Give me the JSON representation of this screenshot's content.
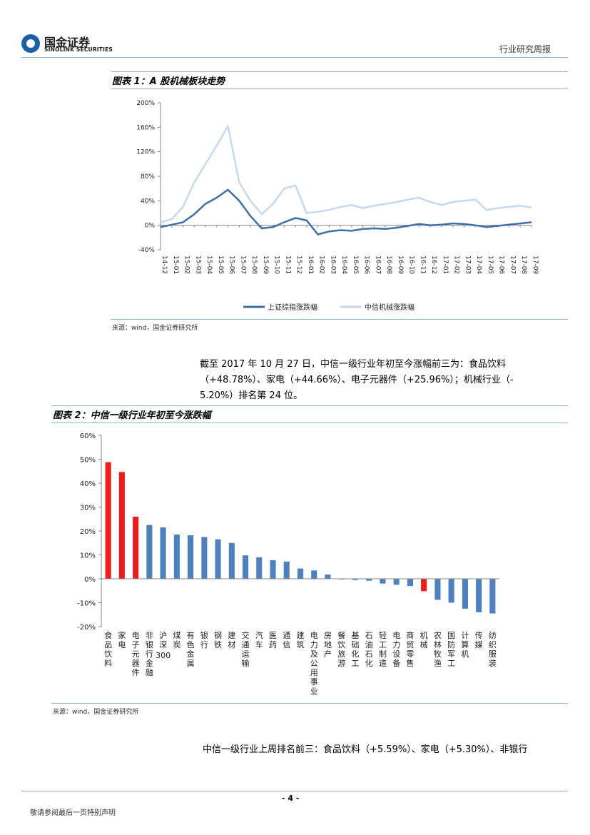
{
  "header": {
    "logo_cn": "国金证券",
    "logo_en": "SINOLINK SECURITIES",
    "report_type": "行业研究周报"
  },
  "figure1": {
    "title": "图表 1：A 股机械板块走势",
    "source": "来源：wind，国金证券研究所"
  },
  "paragraph1": {
    "line1": "截至 2017 年 10 月 27 日，中信一级行业年初至今涨幅前三为：食品饮料",
    "line2": "（+48.78%）、家电（+44.66%）、电子元器件（+25.96%）；机械行业（-",
    "line3": "5.20%）排名第 24 位。"
  },
  "figure2": {
    "title": "图表 2：中信一级行业年初至今涨跌幅",
    "source": "来源：wind，国金证券研究所"
  },
  "paragraph2": {
    "line1": "中信一级行业上周排名前三：食品饮料（+5.59%）、家电（+5.30%）、非银行"
  },
  "footer": {
    "page": "- 4 -",
    "note": "敬请参阅最后一页特别声明"
  },
  "colors": {
    "series_dark": "#3d6fa8",
    "series_light": "#c5d8ed",
    "bar_blue": "#4f81bd",
    "bar_red": "#ee1c1c"
  },
  "chart_data": [
    {
      "type": "line",
      "title": "A 股机械板块走势",
      "y_ticks": [
        "200%",
        "160%",
        "120%",
        "80%",
        "40%",
        "0%",
        "-40%"
      ],
      "ylim": [
        -40,
        200
      ],
      "x_ticks": [
        "14-12",
        "15-01",
        "15-02",
        "15-03",
        "15-04",
        "15-05",
        "15-06",
        "15-07",
        "15-08",
        "15-09",
        "15-10",
        "15-11",
        "15-12",
        "16-01",
        "16-02",
        "16-03",
        "16-04",
        "16-05",
        "16-06",
        "16-07",
        "16-08",
        "16-09",
        "16-10",
        "16-11",
        "16-12",
        "17-01",
        "17-02",
        "17-03",
        "17-04",
        "17-05",
        "17-06",
        "17-07",
        "17-08",
        "17-09"
      ],
      "series": [
        {
          "name": "上证综指涨跌幅",
          "values": [
            -3,
            1,
            5,
            18,
            35,
            45,
            58,
            40,
            15,
            -5,
            -3,
            5,
            12,
            8,
            -15,
            -10,
            -8,
            -9,
            -6,
            -5,
            -6,
            -4,
            -1,
            2,
            0,
            1,
            3,
            2,
            0,
            -3,
            -1,
            1,
            3,
            5
          ]
        },
        {
          "name": "中信机械涨跌幅",
          "values": [
            5,
            10,
            30,
            70,
            100,
            130,
            162,
            70,
            40,
            18,
            35,
            60,
            65,
            20,
            22,
            25,
            30,
            33,
            28,
            32,
            35,
            38,
            42,
            45,
            38,
            33,
            38,
            40,
            42,
            25,
            28,
            30,
            32,
            29
          ]
        }
      ]
    },
    {
      "type": "bar",
      "title": "中信一级行业年初至今涨跌幅",
      "y_ticks": [
        "60%",
        "50%",
        "40%",
        "30%",
        "20%",
        "10%",
        "0%",
        "-10%",
        "-20%"
      ],
      "ylim": [
        -20,
        60
      ],
      "categories": [
        "食品饮料",
        "家电",
        "电子元器件",
        "非银行金融",
        "沪深300",
        "煤炭",
        "有色金属",
        "银行",
        "钢铁",
        "建材",
        "交通运输",
        "汽车",
        "医药",
        "通信",
        "建筑",
        "电力及公用事业",
        "房地产",
        "餐饮旅游",
        "基础化工",
        "石油石化",
        "轻工制造",
        "电力设备",
        "商贸零售",
        "机械",
        "农林牧渔",
        "国防军工",
        "计算机",
        "传媒",
        "纺织服装"
      ],
      "values": [
        48.78,
        44.66,
        25.96,
        22.5,
        21.5,
        18.5,
        18.2,
        17.5,
        16.5,
        15.0,
        9.8,
        9.0,
        7.8,
        7.2,
        4.3,
        3.5,
        1.8,
        -0.2,
        -0.5,
        -0.8,
        -2.0,
        -2.5,
        -3.0,
        -5.2,
        -8.8,
        -10.0,
        -12.5,
        -14.0,
        -14.5
      ],
      "highlight": [
        "食品饮料",
        "家电",
        "电子元器件",
        "机械"
      ]
    }
  ]
}
